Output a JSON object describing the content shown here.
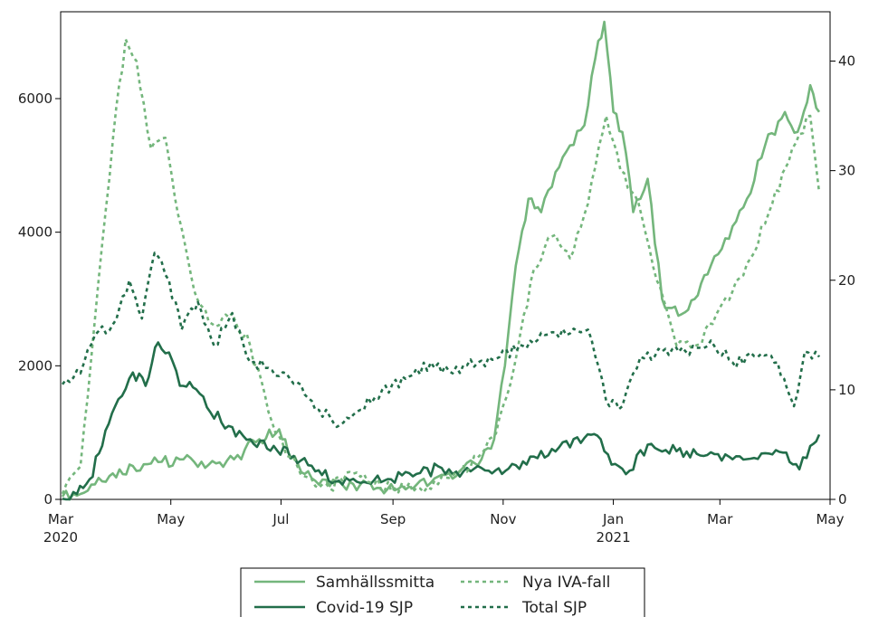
{
  "chart_data": {
    "type": "line",
    "title": "",
    "xlabel": "",
    "ylabel_left": "",
    "ylabel_right": "",
    "x_range": [
      "2020-03-01",
      "2021-05-01"
    ],
    "y_left_range": [
      0,
      7300
    ],
    "y_right_range": [
      0,
      44.5
    ],
    "y_left_ticks": [
      0,
      2000,
      4000,
      6000
    ],
    "y_right_ticks": [
      0,
      10,
      20,
      30,
      40
    ],
    "x_ticks": [
      {
        "date": "2020-03-01",
        "label": "Mar",
        "year": "2020"
      },
      {
        "date": "2020-05-01",
        "label": "May",
        "year": ""
      },
      {
        "date": "2020-07-01",
        "label": "Jul",
        "year": ""
      },
      {
        "date": "2020-09-01",
        "label": "Sep",
        "year": ""
      },
      {
        "date": "2020-11-01",
        "label": "Nov",
        "year": ""
      },
      {
        "date": "2021-01-01",
        "label": "Jan",
        "year": "2021"
      },
      {
        "date": "2021-03-01",
        "label": "Mar",
        "year": ""
      },
      {
        "date": "2021-05-01",
        "label": "May",
        "year": ""
      }
    ],
    "grid": false,
    "legend_position": "bottom-center",
    "series": [
      {
        "name": "Samhällssmitta",
        "axis": "left",
        "color": "#74b67c",
        "dash": "solid",
        "points": [
          [
            "2020-03-02",
            40
          ],
          [
            "2020-03-14",
            100
          ],
          [
            "2020-03-28",
            350
          ],
          [
            "2020-04-10",
            500
          ],
          [
            "2020-04-24",
            560
          ],
          [
            "2020-05-08",
            600
          ],
          [
            "2020-05-22",
            520
          ],
          [
            "2020-06-05",
            600
          ],
          [
            "2020-06-19",
            900
          ],
          [
            "2020-06-30",
            1050
          ],
          [
            "2020-07-05",
            700
          ],
          [
            "2020-07-14",
            380
          ],
          [
            "2020-07-28",
            200
          ],
          [
            "2020-08-10",
            230
          ],
          [
            "2020-08-25",
            170
          ],
          [
            "2020-09-08",
            150
          ],
          [
            "2020-09-22",
            250
          ],
          [
            "2020-10-06",
            350
          ],
          [
            "2020-10-20",
            600
          ],
          [
            "2020-10-27",
            900
          ],
          [
            "2020-11-02",
            2000
          ],
          [
            "2020-11-08",
            3500
          ],
          [
            "2020-11-15",
            4500
          ],
          [
            "2020-11-22",
            4300
          ],
          [
            "2020-11-30",
            4900
          ],
          [
            "2020-12-08",
            5300
          ],
          [
            "2020-12-16",
            5600
          ],
          [
            "2020-12-22",
            6600
          ],
          [
            "2020-12-27",
            7150
          ],
          [
            "2021-01-01",
            5800
          ],
          [
            "2021-01-06",
            5500
          ],
          [
            "2021-01-12",
            4300
          ],
          [
            "2021-01-20",
            4800
          ],
          [
            "2021-01-28",
            3000
          ],
          [
            "2021-02-06",
            2750
          ],
          [
            "2021-02-15",
            3000
          ],
          [
            "2021-02-24",
            3500
          ],
          [
            "2021-03-06",
            3900
          ],
          [
            "2021-03-16",
            4500
          ],
          [
            "2021-03-26",
            5300
          ],
          [
            "2021-04-06",
            5800
          ],
          [
            "2021-04-13",
            5500
          ],
          [
            "2021-04-20",
            6200
          ],
          [
            "2021-04-25",
            5800
          ]
        ]
      },
      {
        "name": "Covid-19 SJP",
        "axis": "left",
        "color": "#226e4a",
        "dash": "solid",
        "points": [
          [
            "2020-03-02",
            10
          ],
          [
            "2020-03-10",
            80
          ],
          [
            "2020-03-17",
            300
          ],
          [
            "2020-03-24",
            800
          ],
          [
            "2020-04-02",
            1500
          ],
          [
            "2020-04-10",
            1900
          ],
          [
            "2020-04-17",
            1700
          ],
          [
            "2020-04-24",
            2350
          ],
          [
            "2020-04-30",
            2200
          ],
          [
            "2020-05-06",
            1700
          ],
          [
            "2020-05-15",
            1650
          ],
          [
            "2020-05-23",
            1300
          ],
          [
            "2020-06-02",
            1100
          ],
          [
            "2020-06-14",
            900
          ],
          [
            "2020-06-27",
            800
          ],
          [
            "2020-07-08",
            650
          ],
          [
            "2020-07-20",
            420
          ],
          [
            "2020-08-02",
            280
          ],
          [
            "2020-08-16",
            260
          ],
          [
            "2020-08-31",
            300
          ],
          [
            "2020-09-14",
            380
          ],
          [
            "2020-09-28",
            470
          ],
          [
            "2020-10-10",
            420
          ],
          [
            "2020-10-24",
            430
          ],
          [
            "2020-11-04",
            460
          ],
          [
            "2020-11-18",
            640
          ],
          [
            "2020-12-02",
            780
          ],
          [
            "2020-12-16",
            920
          ],
          [
            "2020-12-25",
            900
          ],
          [
            "2020-12-31",
            520
          ],
          [
            "2021-01-10",
            430
          ],
          [
            "2021-01-20",
            820
          ],
          [
            "2021-02-05",
            720
          ],
          [
            "2021-02-20",
            650
          ],
          [
            "2021-03-06",
            640
          ],
          [
            "2021-03-20",
            620
          ],
          [
            "2021-04-05",
            700
          ],
          [
            "2021-04-14",
            450
          ],
          [
            "2021-04-20",
            800
          ],
          [
            "2021-04-25",
            970
          ]
        ]
      },
      {
        "name": "Nya IVA-fall",
        "axis": "right",
        "color": "#74b67c",
        "dash": "4,4",
        "points": [
          [
            "2020-03-02",
            0.5
          ],
          [
            "2020-03-12",
            3
          ],
          [
            "2020-03-22",
            20
          ],
          [
            "2020-03-30",
            33
          ],
          [
            "2020-04-06",
            42
          ],
          [
            "2020-04-12",
            40
          ],
          [
            "2020-04-20",
            32
          ],
          [
            "2020-04-28",
            33
          ],
          [
            "2020-05-05",
            26
          ],
          [
            "2020-05-14",
            19
          ],
          [
            "2020-05-24",
            16
          ],
          [
            "2020-06-04",
            17
          ],
          [
            "2020-06-14",
            14
          ],
          [
            "2020-06-24",
            8
          ],
          [
            "2020-07-04",
            4
          ],
          [
            "2020-07-16",
            2
          ],
          [
            "2020-07-28",
            1
          ],
          [
            "2020-08-08",
            2.5
          ],
          [
            "2020-08-20",
            1.5
          ],
          [
            "2020-09-02",
            1
          ],
          [
            "2020-09-16",
            1
          ],
          [
            "2020-09-30",
            2
          ],
          [
            "2020-10-14",
            3
          ],
          [
            "2020-10-28",
            6
          ],
          [
            "2020-11-07",
            12
          ],
          [
            "2020-11-18",
            21
          ],
          [
            "2020-11-28",
            24
          ],
          [
            "2020-12-08",
            22
          ],
          [
            "2020-12-18",
            27
          ],
          [
            "2020-12-28",
            35
          ],
          [
            "2021-01-05",
            30
          ],
          [
            "2021-01-15",
            27
          ],
          [
            "2021-01-25",
            20
          ],
          [
            "2021-02-05",
            14
          ],
          [
            "2021-02-15",
            14
          ],
          [
            "2021-02-25",
            16
          ],
          [
            "2021-03-08",
            19
          ],
          [
            "2021-03-18",
            22
          ],
          [
            "2021-03-30",
            27
          ],
          [
            "2021-04-10",
            32
          ],
          [
            "2021-04-20",
            35
          ],
          [
            "2021-04-25",
            28
          ]
        ]
      },
      {
        "name": "Total SJP",
        "axis": "right",
        "color": "#226e4a",
        "dash": "4,4",
        "points": [
          [
            "2020-03-02",
            10.5
          ],
          [
            "2020-03-12",
            11.5
          ],
          [
            "2020-03-20",
            15
          ],
          [
            "2020-03-30",
            16
          ],
          [
            "2020-04-08",
            20
          ],
          [
            "2020-04-15",
            16.5
          ],
          [
            "2020-04-22",
            22.5
          ],
          [
            "2020-04-30",
            20
          ],
          [
            "2020-05-07",
            15.5
          ],
          [
            "2020-05-16",
            18
          ],
          [
            "2020-05-25",
            14
          ],
          [
            "2020-06-04",
            17
          ],
          [
            "2020-06-14",
            12.5
          ],
          [
            "2020-06-24",
            12
          ],
          [
            "2020-07-06",
            11
          ],
          [
            "2020-07-18",
            9
          ],
          [
            "2020-07-30",
            7
          ],
          [
            "2020-08-12",
            8
          ],
          [
            "2020-08-26",
            10
          ],
          [
            "2020-09-08",
            11
          ],
          [
            "2020-09-22",
            12.5
          ],
          [
            "2020-10-04",
            11.5
          ],
          [
            "2020-10-18",
            12.5
          ],
          [
            "2020-10-30",
            13
          ],
          [
            "2020-11-12",
            14
          ],
          [
            "2020-11-24",
            15
          ],
          [
            "2020-12-06",
            15
          ],
          [
            "2020-12-18",
            15.5
          ],
          [
            "2020-12-28",
            9
          ],
          [
            "2021-01-06",
            8.5
          ],
          [
            "2021-01-16",
            13
          ],
          [
            "2021-01-28",
            13.5
          ],
          [
            "2021-02-10",
            13.5
          ],
          [
            "2021-02-24",
            14.5
          ],
          [
            "2021-03-08",
            12.5
          ],
          [
            "2021-03-22",
            13
          ],
          [
            "2021-04-02",
            12.5
          ],
          [
            "2021-04-11",
            8.5
          ],
          [
            "2021-04-17",
            13.5
          ],
          [
            "2021-04-25",
            13
          ]
        ]
      }
    ]
  }
}
